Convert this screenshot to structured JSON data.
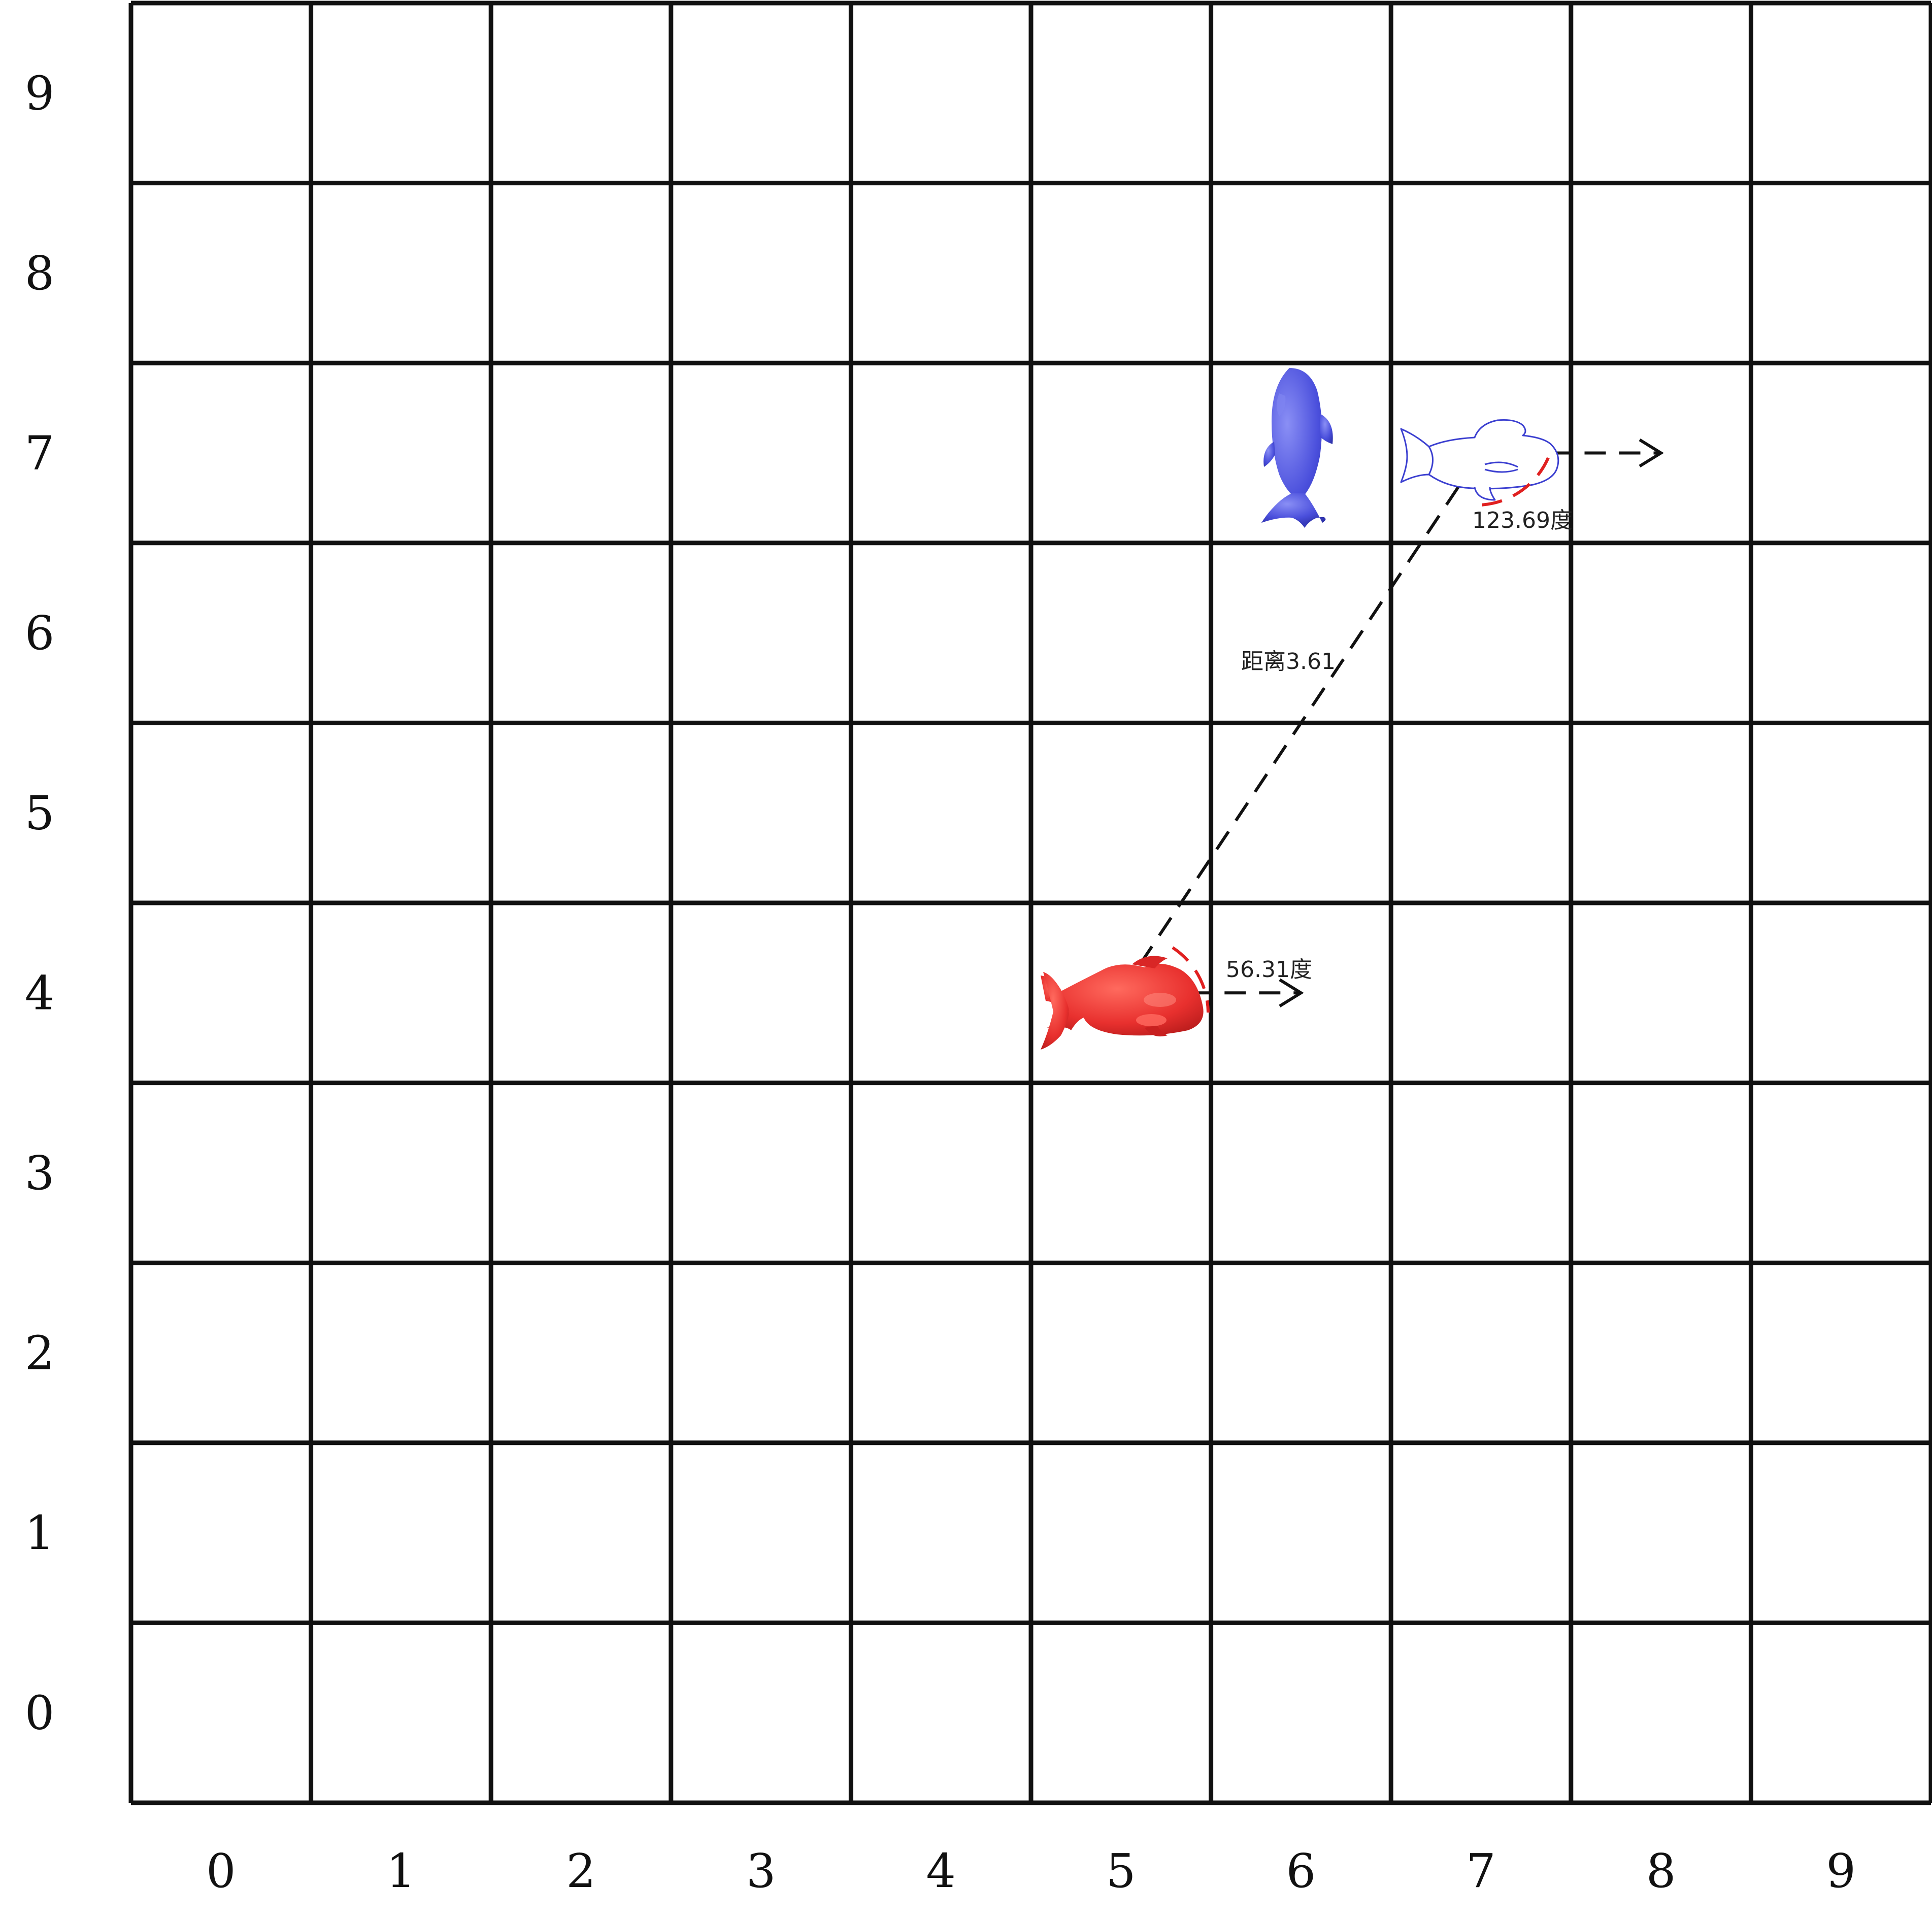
{
  "grid": {
    "x_labels": [
      "0",
      "1",
      "2",
      "3",
      "4",
      "5",
      "6",
      "7",
      "8",
      "9"
    ],
    "y_labels": [
      "0",
      "1",
      "2",
      "3",
      "4",
      "5",
      "6",
      "7",
      "8",
      "9"
    ],
    "line_color": "#111111"
  },
  "pieces": [
    {
      "name": "red-fish",
      "x": 5,
      "y": 4,
      "facing": "right",
      "color": "#e8302e",
      "style": "filled"
    },
    {
      "name": "blue-fish",
      "x": 6,
      "y": 7,
      "facing": "up",
      "color": "#4a4fdc",
      "style": "filled"
    },
    {
      "name": "outline-fish",
      "x": 7,
      "y": 7,
      "facing": "right",
      "color": "#3b3fd0",
      "style": "outline"
    }
  ],
  "annotations": {
    "distance_label": "距离3.61",
    "angle_from_red": "56.31度",
    "angle_from_target": "123.69度",
    "connector_from": [
      5,
      4
    ],
    "connector_to": [
      7,
      7
    ],
    "line_color": "#111111",
    "arc_color": "#e02020"
  }
}
